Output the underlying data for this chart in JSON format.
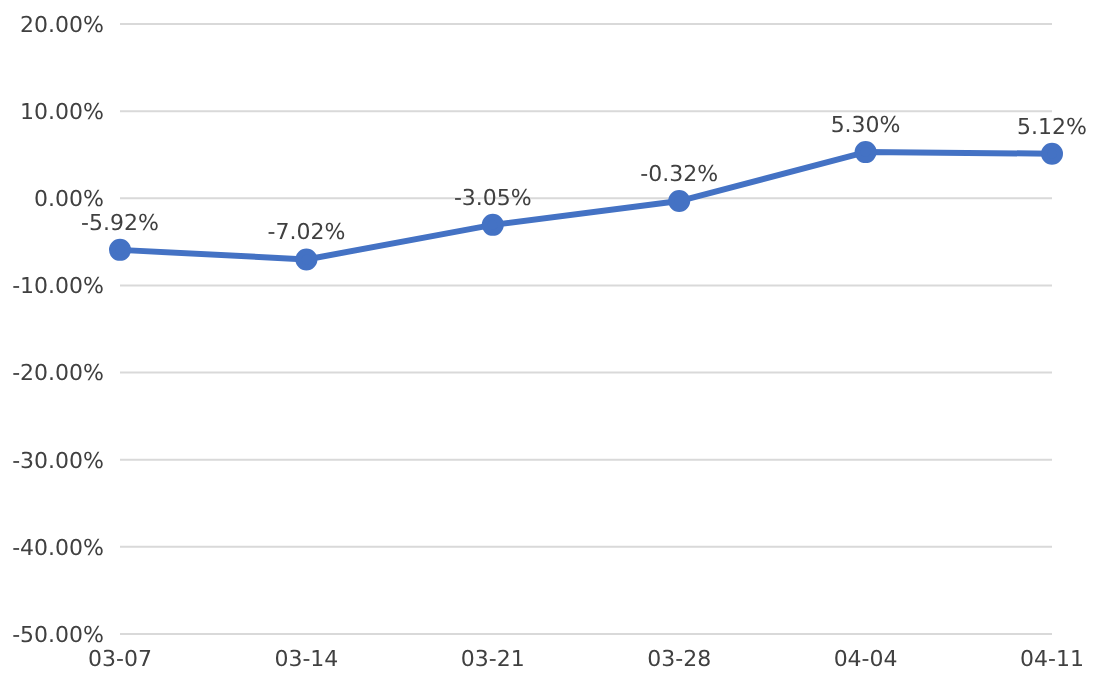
{
  "chart_data": {
    "type": "line",
    "categories": [
      "03-07",
      "03-14",
      "03-21",
      "03-28",
      "04-04",
      "04-11"
    ],
    "series": [
      {
        "color": "#4472c4",
        "values": [
          -5.92,
          -7.02,
          -3.05,
          -0.32,
          5.3,
          5.12
        ],
        "value_labels": [
          "-5.92%",
          "-7.02%",
          "-3.05%",
          "-0.32%",
          "5.30%",
          "5.12%"
        ]
      }
    ],
    "ylim": [
      -50,
      20
    ],
    "yticks": [
      {
        "value": -50,
        "label": "-50.00%"
      },
      {
        "value": -40,
        "label": "-40.00%"
      },
      {
        "value": -30,
        "label": "-30.00%"
      },
      {
        "value": -20,
        "label": "-20.00%"
      },
      {
        "value": -10,
        "label": "-10.00%"
      },
      {
        "value": 0,
        "label": "0.00%"
      },
      {
        "value": 10,
        "label": "10.00%"
      },
      {
        "value": 20,
        "label": "20.00%"
      }
    ],
    "grid": "y",
    "marker": "circle",
    "line_style": "solid",
    "legend": false
  }
}
